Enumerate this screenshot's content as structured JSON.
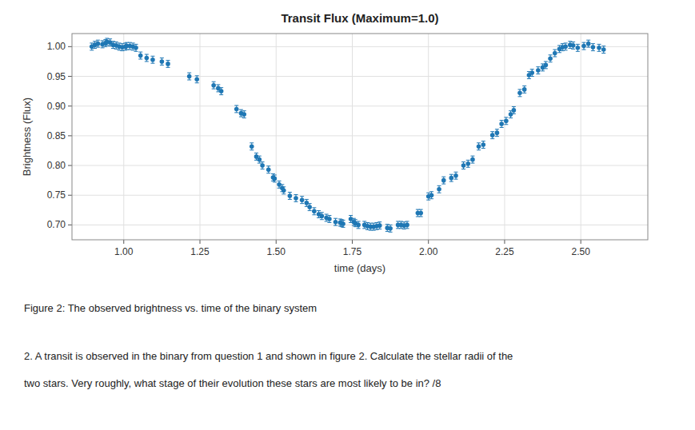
{
  "chart_data": {
    "type": "scatter",
    "title": "Transit Flux (Maximum=1.0)",
    "xlabel": "time (days)",
    "ylabel": "Brightness (Flux)",
    "color": "#1f77b4",
    "marker": "circle",
    "grid": true,
    "x": [
      0.895,
      0.905,
      0.915,
      0.93,
      0.94,
      0.945,
      0.955,
      0.965,
      0.975,
      0.985,
      0.995,
      1.005,
      1.01,
      1.02,
      1.03,
      1.04,
      1.055,
      1.075,
      1.095,
      1.125,
      1.145,
      1.215,
      1.24,
      1.295,
      1.31,
      1.32,
      1.37,
      1.385,
      1.395,
      1.42,
      1.435,
      1.445,
      1.455,
      1.475,
      1.49,
      1.495,
      1.51,
      1.52,
      1.525,
      1.545,
      1.565,
      1.585,
      1.6,
      1.61,
      1.625,
      1.64,
      1.65,
      1.665,
      1.675,
      1.695,
      1.71,
      1.715,
      1.72,
      1.745,
      1.755,
      1.76,
      1.77,
      1.79,
      1.8,
      1.81,
      1.82,
      1.83,
      1.84,
      1.865,
      1.875,
      1.9,
      1.91,
      1.92,
      1.93,
      1.965,
      1.975,
      2.0,
      2.01,
      2.035,
      2.05,
      2.075,
      2.09,
      2.115,
      2.13,
      2.145,
      2.165,
      2.18,
      2.21,
      2.225,
      2.24,
      2.255,
      2.27,
      2.28,
      2.3,
      2.315,
      2.33,
      2.34,
      2.36,
      2.375,
      2.385,
      2.4,
      2.415,
      2.43,
      2.44,
      2.45,
      2.465,
      2.475,
      2.49,
      2.51,
      2.525,
      2.54,
      2.56,
      2.575
    ],
    "values": [
      1.0,
      1.003,
      1.005,
      1.004,
      1.006,
      1.008,
      1.007,
      1.003,
      1.002,
      1.0,
      0.999,
      1.0,
      1.001,
      1.001,
      1.0,
      0.998,
      0.985,
      0.981,
      0.978,
      0.975,
      0.971,
      0.95,
      0.945,
      0.935,
      0.93,
      0.925,
      0.895,
      0.888,
      0.886,
      0.832,
      0.815,
      0.81,
      0.8,
      0.793,
      0.78,
      0.778,
      0.768,
      0.762,
      0.758,
      0.749,
      0.745,
      0.742,
      0.737,
      0.73,
      0.723,
      0.718,
      0.715,
      0.712,
      0.71,
      0.705,
      0.704,
      0.703,
      0.702,
      0.71,
      0.705,
      0.703,
      0.7,
      0.7,
      0.698,
      0.697,
      0.697,
      0.698,
      0.699,
      0.695,
      0.694,
      0.7,
      0.7,
      0.699,
      0.7,
      0.72,
      0.72,
      0.748,
      0.75,
      0.76,
      0.775,
      0.779,
      0.783,
      0.8,
      0.803,
      0.81,
      0.832,
      0.835,
      0.851,
      0.855,
      0.87,
      0.875,
      0.886,
      0.893,
      0.922,
      0.928,
      0.952,
      0.956,
      0.96,
      0.965,
      0.969,
      0.98,
      0.989,
      0.996,
      0.999,
      1.0,
      1.003,
      1.002,
      0.998,
      1.001,
      1.005,
      0.999,
      0.998,
      0.995
    ],
    "yerr": 0.006,
    "xlim": [
      0.83,
      2.72
    ],
    "ylim": [
      0.675,
      1.022
    ],
    "xticks": [
      {
        "value": 1.0,
        "label": "1.00"
      },
      1.25,
      {
        "value": 1.5,
        "label": "1.50"
      },
      1.75,
      {
        "value": 2.0,
        "label": "2.00"
      },
      2.25,
      {
        "value": 2.5,
        "label": "2.50"
      }
    ],
    "yticks": [
      {
        "value": 0.7,
        "label": "0.70"
      },
      0.75,
      {
        "value": 0.8,
        "label": "0.80"
      },
      0.85,
      {
        "value": 0.9,
        "label": "0.90"
      },
      0.95,
      {
        "value": 1.0,
        "label": "1.00"
      }
    ],
    "annotations": [
      "Figure 2: The observed brightness vs. time of the binary system",
      "2.    A transit is observed in the binary from question 1 and shown in figure 2. Calculate the stellar radii of the",
      "two stars. Very roughly, what stage of their evolution these stars are most likely to be in?  /8"
    ]
  }
}
